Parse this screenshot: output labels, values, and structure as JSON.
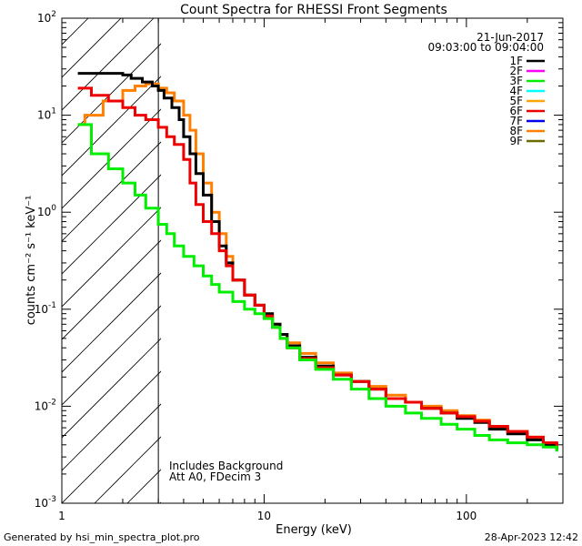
{
  "chart_data": {
    "type": "line",
    "title": "Count Spectra for RHESSI Front Segments",
    "xlabel": "Energy (keV)",
    "ylabel": "counts cm⁻² s⁻¹ keV⁻¹",
    "x_scale": "log",
    "y_scale": "log",
    "xlim": [
      1,
      300
    ],
    "ylim": [
      0.001,
      100
    ],
    "x_ticks": [
      {
        "value": 1,
        "label": "1"
      },
      {
        "value": 10,
        "label": "10"
      },
      {
        "value": 100,
        "label": "100"
      }
    ],
    "y_ticks": [
      {
        "value": 0.001,
        "base": "10",
        "exp": "-3"
      },
      {
        "value": 0.01,
        "base": "10",
        "exp": "-2"
      },
      {
        "value": 0.1,
        "base": "10",
        "exp": "-1"
      },
      {
        "value": 1,
        "base": "10",
        "exp": "0"
      },
      {
        "value": 10,
        "base": "10",
        "exp": "1"
      },
      {
        "value": 100,
        "base": "10",
        "exp": "2"
      }
    ],
    "excluded_region": {
      "xmin": 1,
      "xmax": 3,
      "style": "hatched"
    },
    "legend": {
      "position": "top-right",
      "date": "21-Jun-2017",
      "time_range": "09:03:00 to 09:04:00",
      "entries": [
        {
          "name": "1F",
          "color": "#000000"
        },
        {
          "name": "2F",
          "color": "#ff00ff"
        },
        {
          "name": "3F",
          "color": "#00ee00"
        },
        {
          "name": "4F",
          "color": "#00ffff"
        },
        {
          "name": "5F",
          "color": "#ffa500"
        },
        {
          "name": "6F",
          "color": "#ee0000"
        },
        {
          "name": "7F",
          "color": "#0000ee"
        },
        {
          "name": "8F",
          "color": "#ff8000"
        },
        {
          "name": "9F",
          "color": "#6b6b00"
        }
      ]
    },
    "annotations": [
      "Includes Background",
      "Att A0, FDecim 3"
    ],
    "series": [
      {
        "name": "8F",
        "color": "#ff8000",
        "x": [
          1.2,
          1.3,
          1.6,
          2.0,
          2.3,
          2.6,
          3.0,
          3.3,
          3.6,
          4.0,
          4.3,
          4.6,
          5.0,
          5.5,
          6.0,
          6.5,
          7.0,
          8.0,
          9.0,
          10.0,
          11.0,
          12.0,
          13.0,
          15.0,
          18.0,
          22.0,
          27.0,
          33.0,
          40.0,
          50.0,
          60.0,
          75.0,
          90.0,
          110.0,
          130.0,
          160.0,
          200.0,
          240.0,
          280.0
        ],
        "values": [
          8.0,
          10.0,
          14.0,
          18.0,
          20.0,
          21.0,
          19.0,
          17.0,
          14.0,
          10.0,
          7.0,
          4.0,
          2.0,
          1.0,
          0.6,
          0.35,
          0.2,
          0.14,
          0.11,
          0.09,
          0.07,
          0.055,
          0.045,
          0.035,
          0.028,
          0.022,
          0.018,
          0.016,
          0.013,
          0.011,
          0.01,
          0.009,
          0.008,
          0.0072,
          0.006,
          0.0055,
          0.0048,
          0.0042,
          0.0035
        ]
      },
      {
        "name": "1F",
        "color": "#000000",
        "x": [
          1.2,
          1.4,
          1.7,
          2.0,
          2.2,
          2.5,
          2.8,
          3.0,
          3.2,
          3.5,
          3.8,
          4.0,
          4.3,
          4.6,
          5.0,
          5.5,
          6.0,
          6.5,
          7.0,
          8.0,
          9.0,
          10.0,
          11.0,
          12.0,
          13.0,
          15.0,
          18.0,
          22.0,
          27.0,
          33.0,
          40.0,
          50.0,
          60.0,
          75.0,
          90.0,
          110.0,
          130.0,
          160.0,
          200.0,
          240.0,
          280.0
        ],
        "values": [
          27.0,
          27.0,
          27.0,
          26.0,
          24.0,
          22.0,
          20.0,
          18.0,
          15.0,
          12.0,
          9.0,
          6.0,
          4.0,
          2.5,
          1.5,
          0.8,
          0.45,
          0.3,
          0.2,
          0.14,
          0.11,
          0.09,
          0.07,
          0.055,
          0.042,
          0.032,
          0.026,
          0.021,
          0.018,
          0.015,
          0.012,
          0.011,
          0.0095,
          0.0085,
          0.0075,
          0.0068,
          0.0058,
          0.0052,
          0.0045,
          0.004,
          0.0035
        ]
      },
      {
        "name": "6F",
        "color": "#ee0000",
        "x": [
          1.2,
          1.4,
          1.7,
          2.0,
          2.3,
          2.6,
          3.0,
          3.3,
          3.6,
          4.0,
          4.3,
          4.6,
          5.0,
          5.5,
          6.0,
          6.5,
          7.0,
          8.0,
          9.0,
          10.0,
          11.0,
          12.0,
          13.0,
          15.0,
          18.0,
          22.0,
          27.0,
          33.0,
          40.0,
          50.0,
          60.0,
          75.0,
          90.0,
          110.0,
          130.0,
          160.0,
          200.0,
          240.0,
          280.0
        ],
        "values": [
          19.0,
          16.0,
          14.0,
          12.0,
          10.0,
          9.0,
          7.5,
          6.0,
          5.0,
          3.5,
          2.0,
          1.2,
          0.8,
          0.6,
          0.4,
          0.28,
          0.2,
          0.14,
          0.11,
          0.085,
          0.065,
          0.05,
          0.04,
          0.031,
          0.025,
          0.021,
          0.018,
          0.015,
          0.012,
          0.011,
          0.0095,
          0.0085,
          0.0078,
          0.007,
          0.0062,
          0.0055,
          0.0048,
          0.0042,
          0.0037
        ]
      },
      {
        "name": "3F",
        "color": "#00ee00",
        "x": [
          1.2,
          1.4,
          1.7,
          2.0,
          2.3,
          2.6,
          3.0,
          3.3,
          3.6,
          4.0,
          4.5,
          5.0,
          5.5,
          6.0,
          7.0,
          8.0,
          9.0,
          10.0,
          11.0,
          12.0,
          13.0,
          15.0,
          18.0,
          22.0,
          27.0,
          33.0,
          40.0,
          50.0,
          60.0,
          75.0,
          90.0,
          110.0,
          130.0,
          160.0,
          200.0,
          240.0,
          280.0
        ],
        "values": [
          8.0,
          4.0,
          2.8,
          2.0,
          1.5,
          1.1,
          0.75,
          0.6,
          0.45,
          0.35,
          0.28,
          0.22,
          0.18,
          0.15,
          0.12,
          0.1,
          0.09,
          0.08,
          0.065,
          0.05,
          0.04,
          0.03,
          0.024,
          0.019,
          0.015,
          0.012,
          0.01,
          0.0085,
          0.0075,
          0.0065,
          0.0058,
          0.005,
          0.0045,
          0.0042,
          0.004,
          0.0038,
          0.0034
        ]
      }
    ]
  },
  "footer": {
    "generated_by": "Generated by hsi_min_spectra_plot.pro",
    "timestamp": "28-Apr-2023 12:42"
  }
}
